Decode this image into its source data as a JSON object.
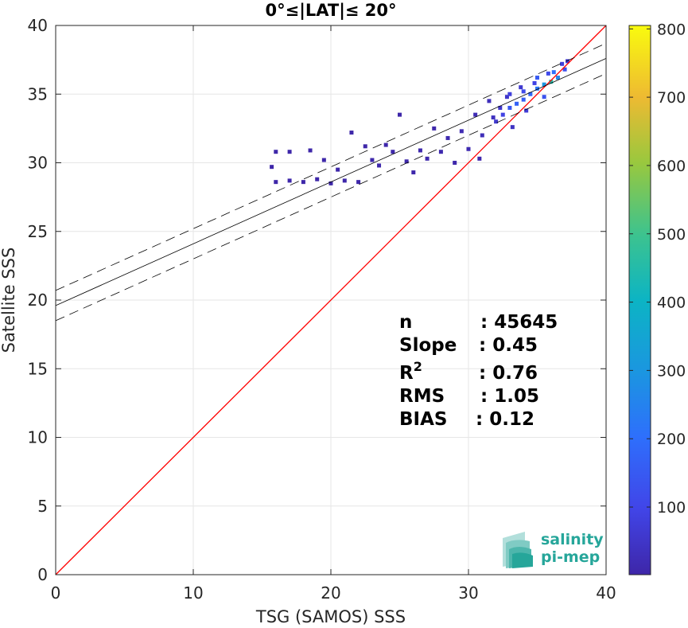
{
  "chart_data": {
    "type": "scatter",
    "title": "0°≤|LAT|≤ 20°",
    "xlabel": "TSG (SAMOS) SSS",
    "ylabel": "Satellite SSS",
    "xlim": [
      0,
      40
    ],
    "ylim": [
      0,
      40
    ],
    "x_ticks": [
      0,
      10,
      20,
      30,
      40
    ],
    "y_ticks": [
      0,
      5,
      10,
      15,
      20,
      25,
      30,
      35,
      40
    ],
    "grid": true,
    "colorbar": {
      "ticks": [
        100,
        200,
        300,
        400,
        500,
        600,
        700,
        800
      ],
      "range": [
        1,
        805
      ],
      "colormap": "parula"
    },
    "lines": {
      "identity": {
        "x": [
          0,
          40
        ],
        "y": [
          0,
          40
        ],
        "color": "#ff0000"
      },
      "fit": {
        "intercept": 19.6,
        "slope": 0.45
      },
      "fit_upper": {
        "intercept": 20.7,
        "slope": 0.45
      },
      "fit_lower": {
        "intercept": 18.5,
        "slope": 0.45
      }
    },
    "density_points": [
      [
        32.0,
        33.0,
        60
      ],
      [
        32.5,
        33.5,
        90
      ],
      [
        33.0,
        34.0,
        140
      ],
      [
        33.5,
        34.3,
        170
      ],
      [
        34.0,
        34.6,
        160
      ],
      [
        34.5,
        35.0,
        180
      ],
      [
        35.0,
        35.4,
        220
      ],
      [
        35.5,
        35.7,
        300
      ],
      [
        36.0,
        35.9,
        450
      ],
      [
        36.5,
        36.2,
        260
      ],
      [
        37.0,
        36.8,
        120
      ],
      [
        36.8,
        37.2,
        80
      ],
      [
        35.8,
        36.5,
        110
      ],
      [
        34.8,
        35.8,
        90
      ],
      [
        33.8,
        35.5,
        60
      ],
      [
        32.8,
        34.8,
        50
      ],
      [
        33.2,
        32.6,
        40
      ],
      [
        34.2,
        33.8,
        70
      ],
      [
        31.5,
        34.5,
        30
      ],
      [
        31.0,
        32.0,
        25
      ],
      [
        30.5,
        33.5,
        20
      ],
      [
        30.0,
        31.0,
        15
      ],
      [
        29.5,
        32.3,
        18
      ],
      [
        28.5,
        31.8,
        12
      ],
      [
        28.0,
        30.8,
        10
      ],
      [
        27.0,
        30.3,
        8
      ],
      [
        26.5,
        30.9,
        8
      ],
      [
        25.5,
        30.1,
        6
      ],
      [
        24.5,
        30.8,
        6
      ],
      [
        23.5,
        29.8,
        5
      ],
      [
        23.0,
        30.2,
        5
      ],
      [
        22.0,
        28.6,
        4
      ],
      [
        21.0,
        28.7,
        4
      ],
      [
        20.0,
        28.5,
        3
      ],
      [
        19.0,
        28.8,
        3
      ],
      [
        18.0,
        28.6,
        3
      ],
      [
        17.0,
        28.7,
        4
      ],
      [
        16.0,
        28.6,
        3
      ],
      [
        17.0,
        30.8,
        4
      ],
      [
        16.0,
        30.8,
        3
      ],
      [
        18.5,
        30.9,
        3
      ],
      [
        21.5,
        32.2,
        3
      ],
      [
        22.5,
        31.2,
        3
      ],
      [
        25.0,
        33.5,
        3
      ],
      [
        27.5,
        32.5,
        4
      ],
      [
        15.7,
        29.7,
        2
      ],
      [
        26.0,
        29.3,
        5
      ],
      [
        29.0,
        30.0,
        6
      ],
      [
        30.8,
        30.3,
        5
      ],
      [
        24.0,
        31.3,
        4
      ],
      [
        20.5,
        29.5,
        3
      ],
      [
        19.5,
        30.2,
        3
      ],
      [
        33.0,
        35.0,
        80
      ],
      [
        34.0,
        35.2,
        110
      ],
      [
        35.0,
        36.2,
        150
      ],
      [
        36.2,
        36.6,
        200
      ],
      [
        37.2,
        37.4,
        60
      ],
      [
        32.3,
        34.0,
        55
      ],
      [
        31.8,
        33.3,
        35
      ],
      [
        35.5,
        34.8,
        130
      ]
    ],
    "annotations": [
      {
        "label": "n",
        "value": ": 45645"
      },
      {
        "label": "Slope",
        "value": ": 0.45"
      },
      {
        "label": "R",
        "sup": "2",
        "value": ": 0.76"
      },
      {
        "label": "RMS",
        "value": ": 1.05"
      },
      {
        "label": "BIAS",
        "value": ": 0.12"
      }
    ]
  },
  "logo": {
    "line1": "salinity",
    "line2": "pi-mep",
    "color": "#26a69a"
  }
}
